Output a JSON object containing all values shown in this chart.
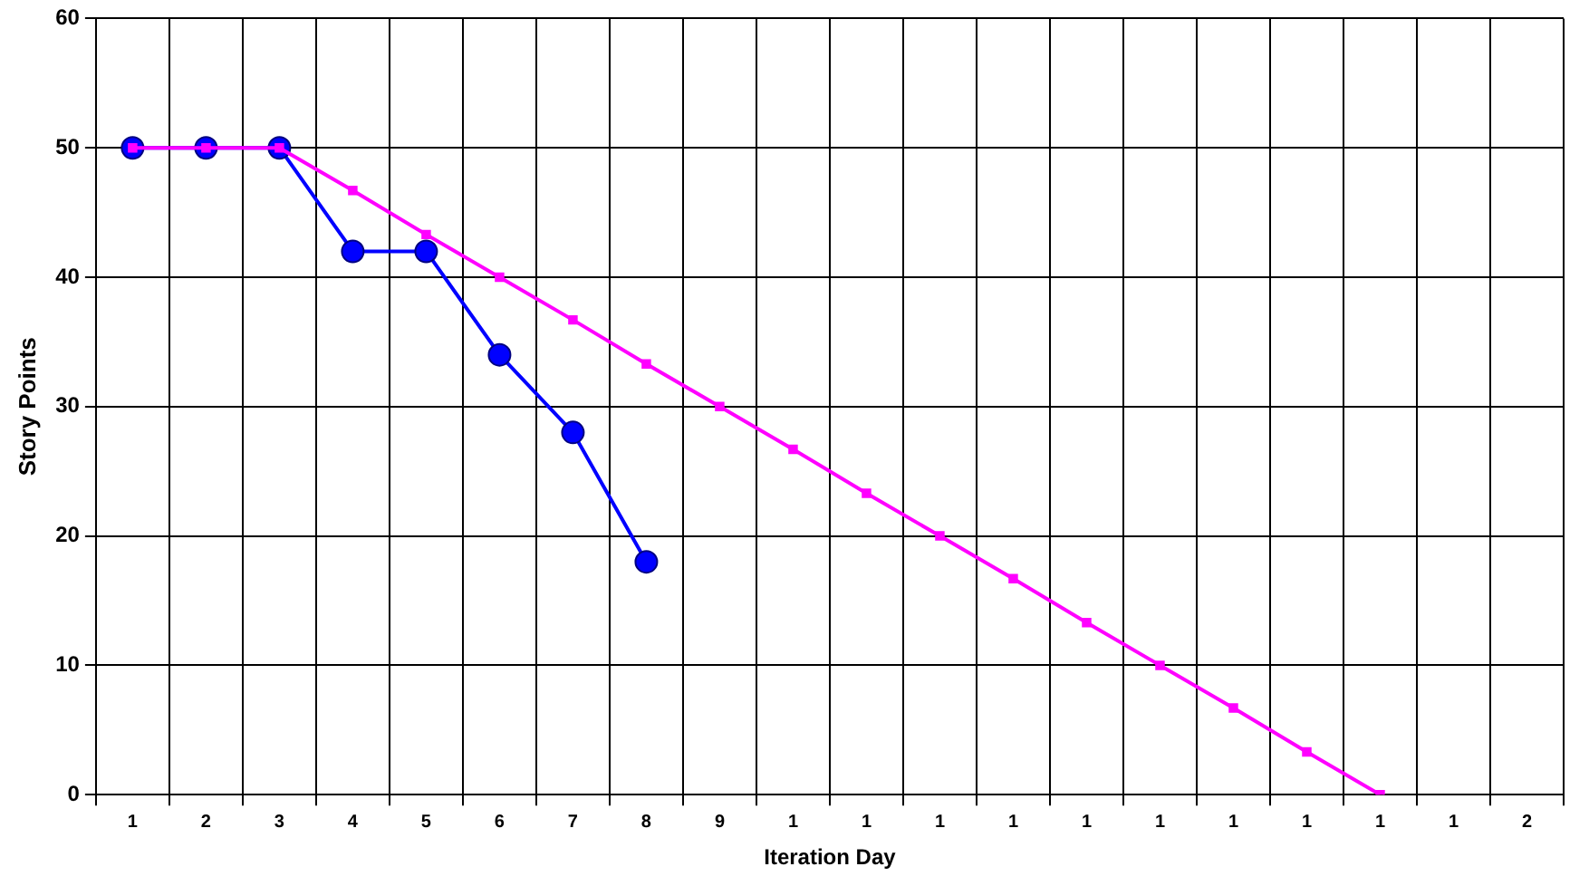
{
  "chart_data": {
    "type": "line",
    "xlabel": "Iteration Day",
    "ylabel": "Story Points",
    "categories": [
      "1",
      "2",
      "3",
      "4",
      "5",
      "6",
      "7",
      "8",
      "9",
      "1",
      "1",
      "1",
      "1",
      "1",
      "1",
      "1",
      "1",
      "1",
      "1",
      "2"
    ],
    "series": [
      {
        "color": "#0000ff",
        "marker": "circle",
        "values": [
          50,
          50,
          50,
          42,
          42,
          34,
          28,
          18,
          null,
          null,
          null,
          null,
          null,
          null,
          null,
          null,
          null,
          null,
          null,
          null
        ]
      },
      {
        "color": "#ff00ff",
        "marker": "square",
        "values": [
          50,
          50,
          50,
          46.7,
          43.3,
          40,
          36.7,
          33.3,
          30,
          26.7,
          23.3,
          20,
          16.7,
          13.3,
          10,
          6.7,
          3.3,
          0,
          null,
          null
        ]
      }
    ],
    "ylim": [
      0,
      60
    ],
    "yticks": [
      0,
      10,
      20,
      30,
      40,
      50,
      60
    ],
    "grid": true,
    "legend": false,
    "line_style": "solid"
  }
}
